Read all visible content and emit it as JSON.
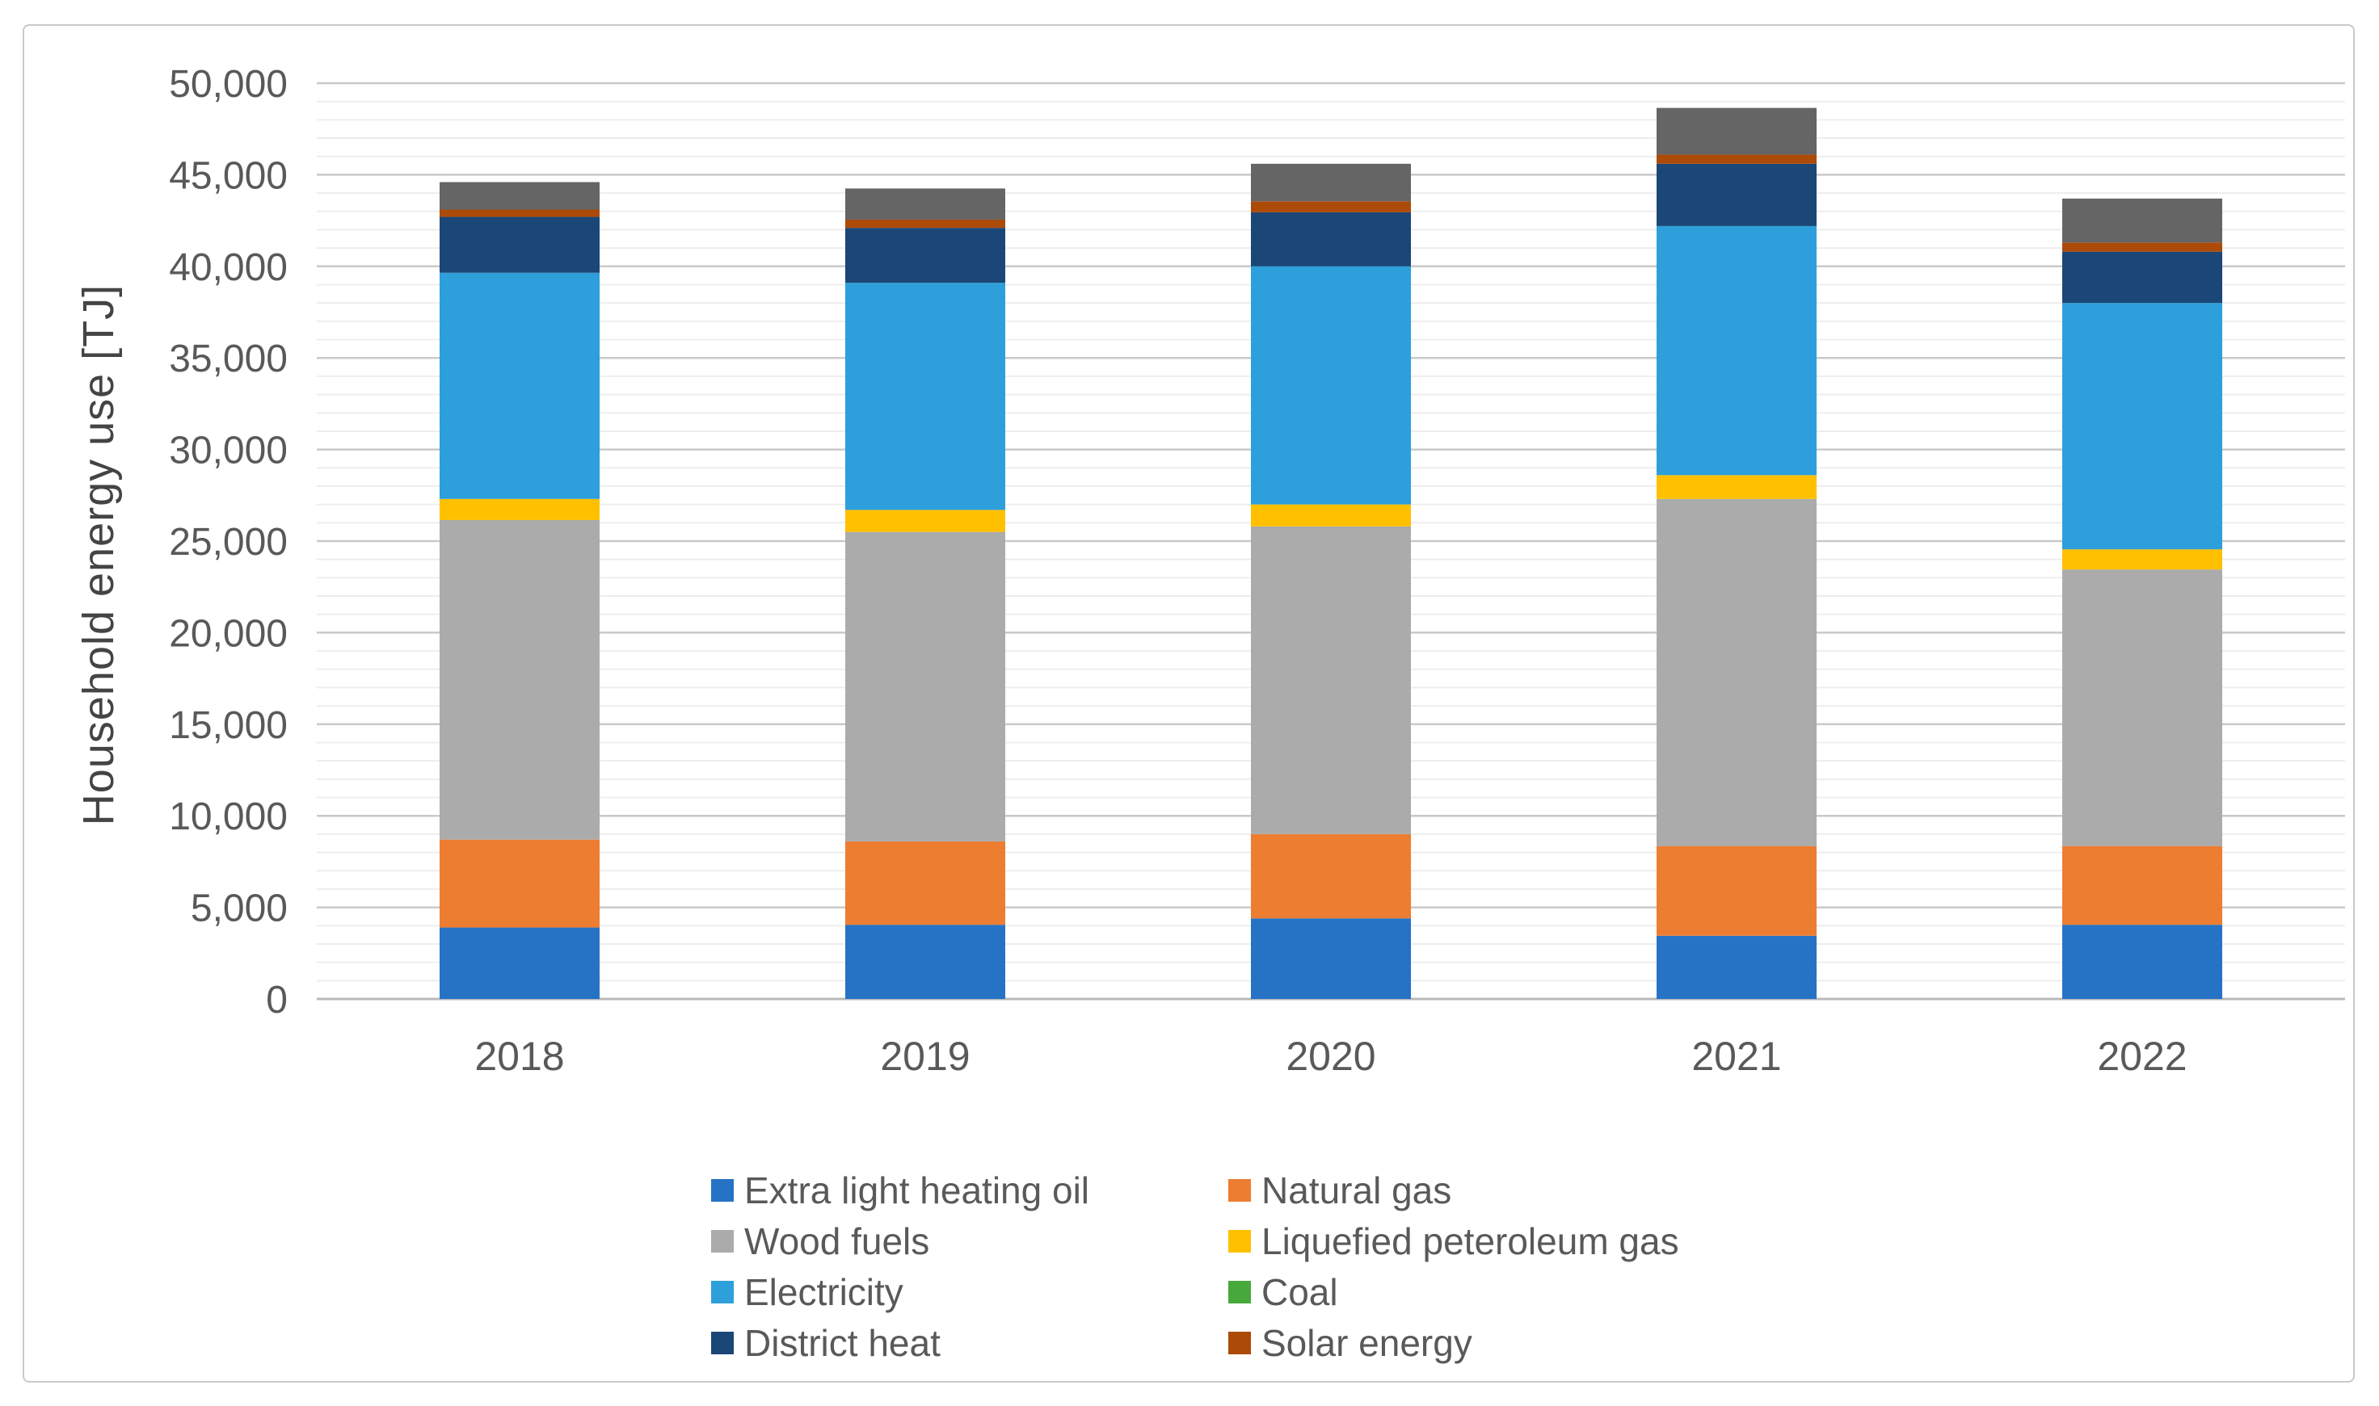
{
  "figure": {
    "background": "#FFFFFF",
    "border_color": "#C9C9C9"
  },
  "chart_data": {
    "type": "bar",
    "stacked": true,
    "title": "",
    "xlabel": "",
    "ylabel": "Household energy use [TJ]",
    "categories": [
      "2018",
      "2019",
      "2020",
      "2021",
      "2022"
    ],
    "series": [
      {
        "name": "Extra light heating oil",
        "color": "#2673C5",
        "values": [
          3900,
          4050,
          4400,
          3450,
          4050
        ]
      },
      {
        "name": "Natural gas",
        "color": "#ED7D31",
        "values": [
          4800,
          4550,
          4600,
          4900,
          4300
        ]
      },
      {
        "name": "Wood fuels",
        "color": "#ABABAB",
        "values": [
          17450,
          16900,
          16800,
          18950,
          15100
        ]
      },
      {
        "name": "Liquefied peteroleum gas",
        "color": "#FFC000",
        "values": [
          1150,
          1200,
          1200,
          1300,
          1100
        ]
      },
      {
        "name": "Electricity",
        "color": "#2D9FDB",
        "values": [
          12350,
          12400,
          13000,
          13600,
          13450
        ]
      },
      {
        "name": "Coal",
        "color": "#47A83C",
        "values": [
          0,
          0,
          0,
          0,
          0
        ]
      },
      {
        "name": "District heat",
        "color": "#1A4678",
        "values": [
          3050,
          3000,
          2950,
          3400,
          2800
        ]
      },
      {
        "name": "Solar energy",
        "color": "#AC4A08",
        "values": [
          400,
          450,
          600,
          500,
          500
        ]
      },
      {
        "name": "(unlabeled)",
        "color": "#656565",
        "values": [
          1500,
          1700,
          2050,
          2550,
          2400
        ]
      }
    ],
    "bar_totals": [
      44600,
      44250,
      45600,
      48650,
      43700
    ],
    "ylim": [
      0,
      50000
    ],
    "y_major_tick_interval": 5000,
    "y_minor_gridline_interval": 1000,
    "y_tick_labels": [
      "0",
      "5,000",
      "10,000",
      "15,000",
      "20,000",
      "25,000",
      "30,000",
      "35,000",
      "40,000",
      "45,000",
      "50,000"
    ],
    "grid": "horizontal only: minor every 1,000 (light), major every 5,000 (darker)",
    "legend_position": "bottom, two columns",
    "legend": [
      {
        "label": "Extra light heating oil",
        "color": "#2673C5"
      },
      {
        "label": "Natural gas",
        "color": "#ED7D31"
      },
      {
        "label": "Wood fuels",
        "color": "#ABABAB"
      },
      {
        "label": "Liquefied peteroleum gas",
        "color": "#FFC000"
      },
      {
        "label": "Electricity",
        "color": "#2D9FDB"
      },
      {
        "label": "Coal",
        "color": "#47A83C"
      },
      {
        "label": "District heat",
        "color": "#1A4678"
      },
      {
        "label": "Solar energy",
        "color": "#AC4A08"
      }
    ]
  }
}
